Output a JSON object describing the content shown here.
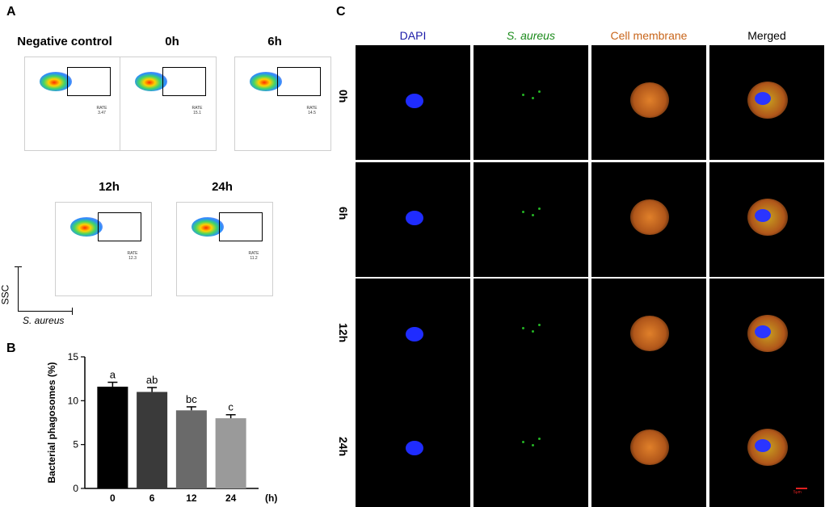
{
  "panels": {
    "a": "A",
    "b": "B",
    "c": "C"
  },
  "flow": {
    "plots": [
      {
        "title": "Negative control",
        "rate_label": "RATE",
        "rate_value": "3.47"
      },
      {
        "title": "0h",
        "rate_label": "RATE",
        "rate_value": "15.1"
      },
      {
        "title": "6h",
        "rate_label": "RATE",
        "rate_value": "14.5"
      },
      {
        "title": "12h",
        "rate_label": "RATE",
        "rate_value": "12.3"
      },
      {
        "title": "24h",
        "rate_label": "RATE",
        "rate_value": "11.2"
      }
    ],
    "axis_y": "SSC",
    "axis_x": "S. aureus"
  },
  "chart_data": {
    "type": "bar",
    "categories": [
      "0",
      "6",
      "12",
      "24"
    ],
    "values": [
      11.6,
      11.0,
      8.9,
      8.0
    ],
    "errors": [
      0.5,
      0.5,
      0.4,
      0.4
    ],
    "letters": [
      "a",
      "ab",
      "bc",
      "c"
    ],
    "bar_colors": [
      "#000000",
      "#3a3a3a",
      "#6a6a6a",
      "#9a9a9a"
    ],
    "ylabel": "Bacterial phagosomes (%)",
    "xunit": "(h)",
    "ylim": [
      0,
      15
    ],
    "yticks": [
      0,
      5,
      10,
      15
    ],
    "grid": false
  },
  "microscopy": {
    "channels": [
      "DAPI",
      "S. aureus",
      "Cell membrane",
      "Merged"
    ],
    "channel_colors": [
      "#1a1aa8",
      "#1a8a1a",
      "#c8651a",
      "#000000"
    ],
    "rows": [
      "0h",
      "6h",
      "12h",
      "24h"
    ],
    "scale_bar": "5μm"
  }
}
